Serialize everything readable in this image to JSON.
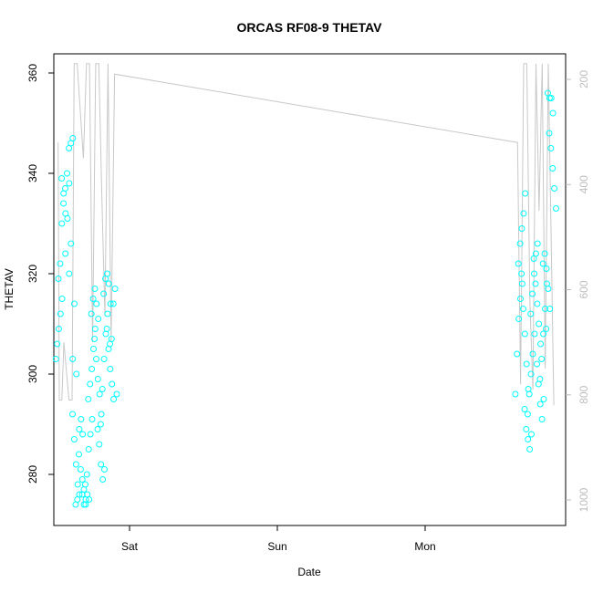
{
  "chart_data": {
    "type": "scatter",
    "title": "ORCAS RF08-9 THETAV",
    "xlabel": "Date",
    "ylabel": "THETAV",
    "x_ticks": [
      "Sat",
      "Sun",
      "Mon"
    ],
    "y_ticks": [
      280,
      300,
      320,
      340,
      360
    ],
    "y2_ticks": [
      200,
      400,
      600,
      800,
      1000
    ],
    "ylim": [
      271,
      364.5
    ],
    "y2lim": [
      1040,
      170
    ],
    "y2_reversed": true,
    "grid": false,
    "colors": {
      "points": "#00ffff",
      "line": "#c8c8c8",
      "axis": "#000000",
      "right_axis": "#bdbdbd"
    },
    "series": [
      {
        "role": "points",
        "x": [
          "Fri 12:24",
          "Fri 12:26",
          "Fri 12:30",
          "Fri 12:36",
          "Fri 12:42",
          "Fri 12:48",
          "Fri 12:54",
          "Fri 13:00",
          "Fri 13:06",
          "Fri 13:12",
          "Fri 13:20",
          "Fri 13:28",
          "Fri 13:36",
          "Fri 13:44",
          "Fri 13:50",
          "Fri 13:56",
          "Fri 14:02",
          "Fri 14:10",
          "Fri 14:18",
          "Fri 14:26",
          "Fri 14:34",
          "Fri 14:40",
          "Fri 14:46",
          "Fri 14:52",
          "Fri 15:00",
          "Fri 15:06",
          "Fri 15:12",
          "Fri 15:18",
          "Fri 15:24",
          "Fri 15:30",
          "Fri 15:36",
          "Fri 15:42",
          "Fri 15:50",
          "Fri 15:56",
          "Fri 16:02",
          "Fri 16:08",
          "Fri 16:14",
          "Fri 16:20",
          "Fri 16:26",
          "Fri 16:32",
          "Fri 16:40",
          "Fri 16:46",
          "Fri 16:52",
          "Fri 16:58",
          "Fri 17:04",
          "Fri 17:10",
          "Fri 17:16",
          "Fri 17:22",
          "Fri 17:28",
          "Fri 17:34",
          "Fri 17:40",
          "Fri 17:46",
          "Fri 17:52",
          "Fri 17:58",
          "Fri 18:04",
          "Fri 18:10",
          "Fri 18:16",
          "Fri 18:22",
          "Fri 18:28",
          "Fri 18:34",
          "Fri 18:40",
          "Fri 18:46",
          "Fri 18:52",
          "Fri 18:58",
          "Fri 19:04",
          "Fri 19:10",
          "Fri 19:16",
          "Fri 19:22",
          "Fri 19:28",
          "Fri 19:34",
          "Fri 19:40",
          "Fri 19:46",
          "Fri 19:52",
          "Fri 19:58",
          "Fri 20:04",
          "Fri 20:10",
          "Fri 20:16",
          "Fri 20:22",
          "Fri 20:28",
          "Fri 20:34",
          "Fri 20:40",
          "Fri 20:46",
          "Fri 20:52",
          "Fri 20:58",
          "Fri 21:04",
          "Fri 21:10",
          "Fri 21:16",
          "Fri 21:22",
          "Fri 21:28",
          "Fri 21:34",
          "Mon 15:00",
          "Mon 15:06",
          "Mon 15:12",
          "Mon 15:18",
          "Mon 15:24",
          "Mon 15:30",
          "Mon 15:36",
          "Mon 15:42",
          "Mon 15:48",
          "Mon 15:54",
          "Mon 16:00",
          "Mon 16:06",
          "Mon 16:12",
          "Mon 16:18",
          "Mon 16:24",
          "Mon 16:30",
          "Mon 16:36",
          "Mon 16:42",
          "Mon 16:48",
          "Mon 16:54",
          "Mon 17:00",
          "Mon 17:06",
          "Mon 17:12",
          "Mon 17:18",
          "Mon 17:24",
          "Mon 17:30",
          "Mon 17:36",
          "Mon 17:42",
          "Mon 17:48",
          "Mon 17:54",
          "Mon 18:00",
          "Mon 18:06",
          "Mon 18:12",
          "Mon 18:18",
          "Mon 18:24",
          "Mon 18:30",
          "Mon 18:36",
          "Mon 18:42",
          "Mon 18:48",
          "Mon 18:54",
          "Mon 19:00",
          "Mon 19:06",
          "Mon 19:12",
          "Mon 19:18",
          "Mon 19:24",
          "Mon 19:30",
          "Mon 19:36",
          "Mon 19:42",
          "Mon 19:48",
          "Mon 19:54",
          "Mon 20:00",
          "Mon 20:06",
          "Mon 20:12",
          "Mon 20:18",
          "Mon 20:24",
          "Mon 20:30",
          "Mon 20:36",
          "Mon 20:42",
          "Mon 20:48",
          "Mon 20:54"
        ],
        "y": [
          303,
          306,
          309,
          312,
          315,
          319,
          322,
          330,
          334,
          337,
          339,
          336,
          332,
          331,
          320,
          324,
          340,
          345,
          346,
          347,
          338,
          326,
          303,
          314,
          300,
          292,
          287,
          282,
          278,
          276,
          274,
          275,
          289,
          291,
          288,
          284,
          281,
          279,
          274,
          275,
          276,
          277,
          274,
          276,
          275,
          278,
          280,
          285,
          288,
          291,
          295,
          298,
          301,
          305,
          309,
          312,
          315,
          317,
          314,
          311,
          307,
          303,
          299,
          296,
          292,
          289,
          286,
          282,
          279,
          281,
          290,
          297,
          303,
          308,
          312,
          316,
          319,
          320,
          318,
          314,
          309,
          305,
          301,
          298,
          295,
          306,
          307,
          314,
          317,
          296,
          296,
          304,
          311,
          315,
          318,
          322,
          326,
          329,
          332,
          336,
          320,
          313,
          308,
          302,
          297,
          293,
          289,
          287,
          285,
          288,
          292,
          296,
          300,
          304,
          308,
          312,
          316,
          320,
          324,
          326,
          323,
          318,
          314,
          310,
          306,
          302,
          298,
          294,
          291,
          295,
          299,
          303,
          308,
          313,
          318,
          322,
          324,
          321,
          317,
          313,
          309,
          356,
          355,
          355,
          352,
          348,
          345,
          341,
          337,
          333
        ]
      },
      {
        "role": "line",
        "x": [
          "Fri 12:24",
          "Fri 12:36",
          "Fri 13:00",
          "Fri 13:20",
          "Fri 14:10",
          "Fri 14:40",
          "Fri 15:00",
          "Fri 15:30",
          "Fri 16:30",
          "Fri 17:00",
          "Fri 17:30",
          "Fri 18:00",
          "Fri 18:30",
          "Fri 19:00",
          "Fri 19:30",
          "Fri 20:00",
          "Fri 20:30",
          "Fri 21:00",
          "Fri 21:34",
          "Mon 15:00",
          "Mon 15:30",
          "Mon 16:00",
          "Mon 16:30",
          "Mon 17:00",
          "Mon 17:30",
          "Mon 18:00",
          "Mon 18:30",
          "Mon 19:00",
          "Mon 19:30",
          "Mon 20:00",
          "Mon 20:54"
        ],
        "y2": [
          320,
          810,
          810,
          700,
          810,
          810,
          170,
          170,
          350,
          170,
          170,
          700,
          170,
          170,
          420,
          650,
          170,
          700,
          190,
          320,
          780,
          170,
          170,
          620,
          790,
          170,
          450,
          170,
          750,
          170,
          820
        ]
      }
    ]
  }
}
